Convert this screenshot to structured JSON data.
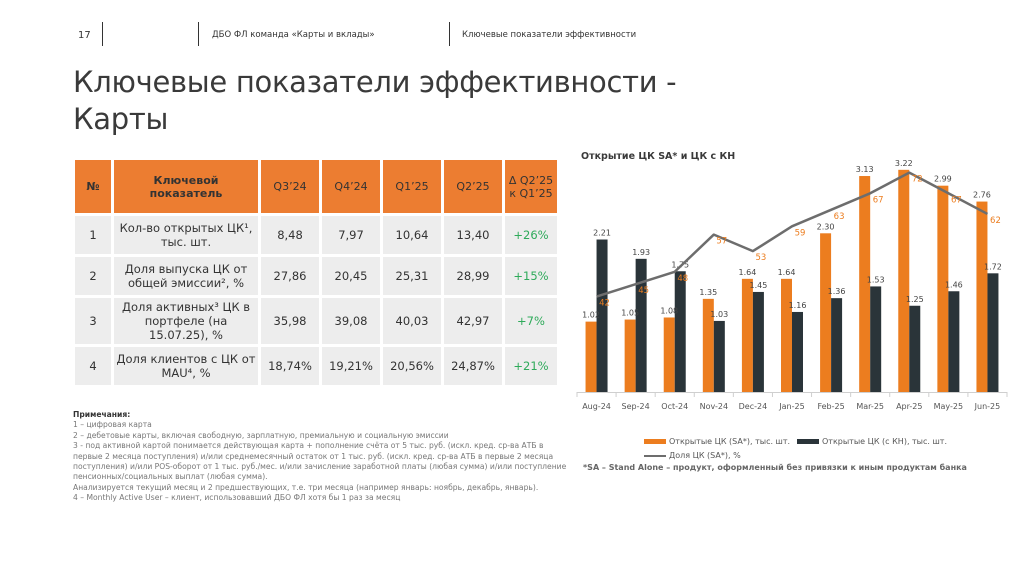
{
  "header": {
    "page_number": "17",
    "section": "ДБО ФЛ команда «Карты и вклады»",
    "subsection": "Ключевые показатели эффективности"
  },
  "title_line1": "Ключевые показатели эффективности -",
  "title_line2": "Карты",
  "table": {
    "headers": [
      "№",
      "Ключевой показатель",
      "Q3’24",
      "Q4’24",
      "Q1’25",
      "Q2’25",
      "Δ Q2’25 к Q1’25"
    ],
    "rows": [
      {
        "num": "1",
        "name": "Кол-во открытых ЦК¹, тыс. шт.",
        "q3_24": "8,48",
        "q4_24": "7,97",
        "q1_25": "10,64",
        "q2_25": "13,40",
        "delta": "+26%"
      },
      {
        "num": "2",
        "name": "Доля выпуска ЦК от общей эмиссии², %",
        "q3_24": "27,86",
        "q4_24": "20,45",
        "q1_25": "25,31",
        "q2_25": "28,99",
        "delta": "+15%"
      },
      {
        "num": "3",
        "name": "Доля активных³ ЦК в портфеле (на 15.07.25), %",
        "q3_24": "35,98",
        "q4_24": "39,08",
        "q1_25": "40,03",
        "q2_25": "42,97",
        "delta": "+7%"
      },
      {
        "num": "4",
        "name": "Доля клиентов с ЦК от MAU⁴, %",
        "q3_24": "18,74%",
        "q4_24": "19,21%",
        "q1_25": "20,56%",
        "q2_25": "24,87%",
        "delta": "+21%"
      }
    ]
  },
  "notes": {
    "heading": "Примечания:",
    "lines": [
      "1 – цифровая карта",
      "2 – дебетовые карты, включая свободную, зарплатную, премиальную и социальную эмиссии",
      "3 - под активной картой понимается действующая карта + пополнение счёта от 5 тыс. руб. (искл. кред. ср-ва АТБ в первые 2 месяца поступления) и/или среднемесячный остаток от 1 тыс. руб. (искл. кред. ср-ва АТБ в первые 2 месяца поступления) и/или POS-оборот от 1 тыс. руб./мес. и/или зачисление заработной платы (любая сумма) и/или поступление пенсионных/социальных выплат (любая сумма).",
      "Анализируется текущий месяц и 2 предшествующих, т.е. три месяца (например январь: ноябрь, декабрь, январь).",
      "4 – Monthly Active User – клиент, использовавший ДБО ФЛ хотя бы 1 раз за месяц"
    ]
  },
  "chart_data": {
    "type": "bar",
    "title": "Открытие ЦК SA* и ЦК с КН",
    "categories": [
      "Aug-24",
      "Sep-24",
      "Oct-24",
      "Nov-24",
      "Dec-24",
      "Jan-25",
      "Feb-25",
      "Mar-25",
      "Apr-25",
      "May-25",
      "Jun-25"
    ],
    "series": [
      {
        "name": "Открытые ЦК (SA*), тыс. шт.",
        "kind": "bar",
        "color": "#ec7d1f",
        "values": [
          1.02,
          1.05,
          1.08,
          1.35,
          1.64,
          1.64,
          2.3,
          3.13,
          3.22,
          2.99,
          2.76
        ]
      },
      {
        "name": "Открытые ЦК (с КН), тыс. шт.",
        "kind": "bar",
        "color": "#2a3439",
        "values": [
          2.21,
          1.93,
          1.75,
          1.03,
          1.45,
          1.16,
          1.36,
          1.53,
          1.25,
          1.46,
          1.72
        ]
      },
      {
        "name": "Доля ЦК (SA*), %",
        "kind": "line",
        "color": "#6d6d6d",
        "values": [
          42,
          45,
          48,
          57,
          53,
          59,
          63,
          67,
          72,
          67,
          62
        ]
      }
    ],
    "bar_label_color": "#444444",
    "line_label_color": "#ec7d1f",
    "bar_ylim": [
      0,
      3.3
    ],
    "line_ylim": [
      0,
      100
    ],
    "grid": false,
    "legend_position": "bottom",
    "footnote": "*SA – Stand Alone – продукт, оформленный без привязки к иным продуктам банка"
  }
}
